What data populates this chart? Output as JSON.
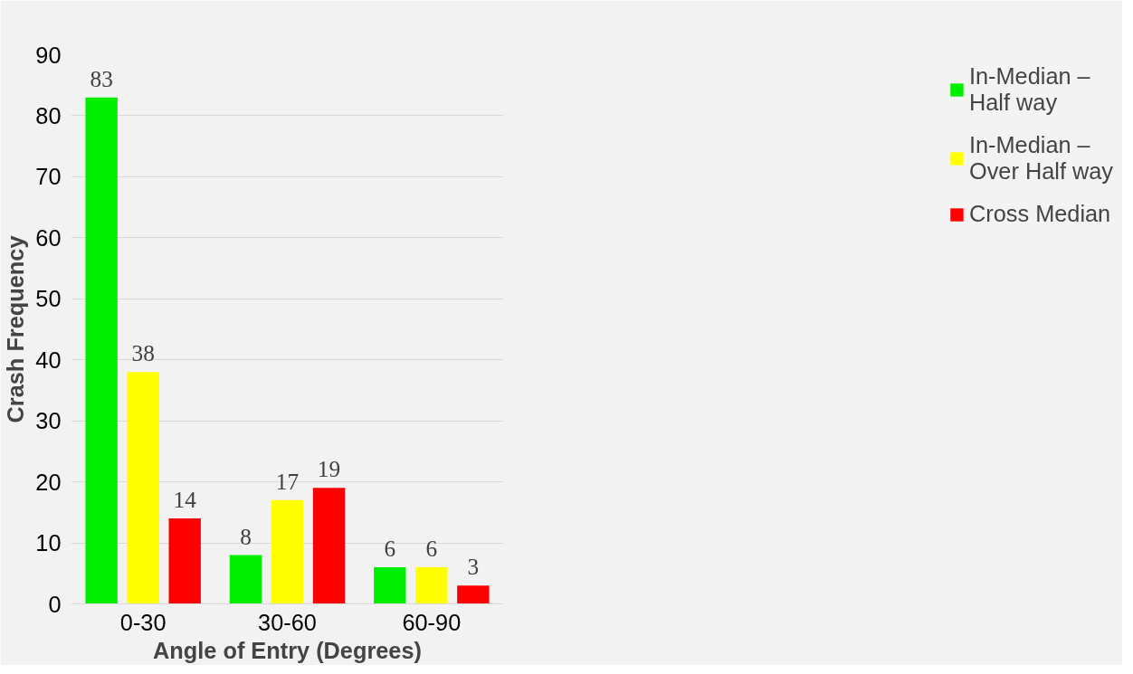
{
  "chart_data": {
    "type": "bar",
    "xlabel": "Angle of Entry (Degrees)",
    "ylabel": "Crash Frequency",
    "categories": [
      "0-30",
      "30-60",
      "60-90"
    ],
    "series": [
      {
        "name": "In-Median – Half way",
        "color": "#00ee00",
        "values": [
          83,
          8,
          6
        ]
      },
      {
        "name": "In-Median – Over Half way",
        "color": "#ffff00",
        "values": [
          38,
          17,
          6
        ]
      },
      {
        "name": "Cross Median",
        "color": "#ff0000",
        "values": [
          14,
          19,
          3
        ]
      }
    ],
    "ylim": [
      0,
      90
    ],
    "yticks": [
      0,
      10,
      20,
      30,
      40,
      50,
      60,
      70,
      80,
      90
    ],
    "grid": "y",
    "legend": "right",
    "data_labels": true
  }
}
